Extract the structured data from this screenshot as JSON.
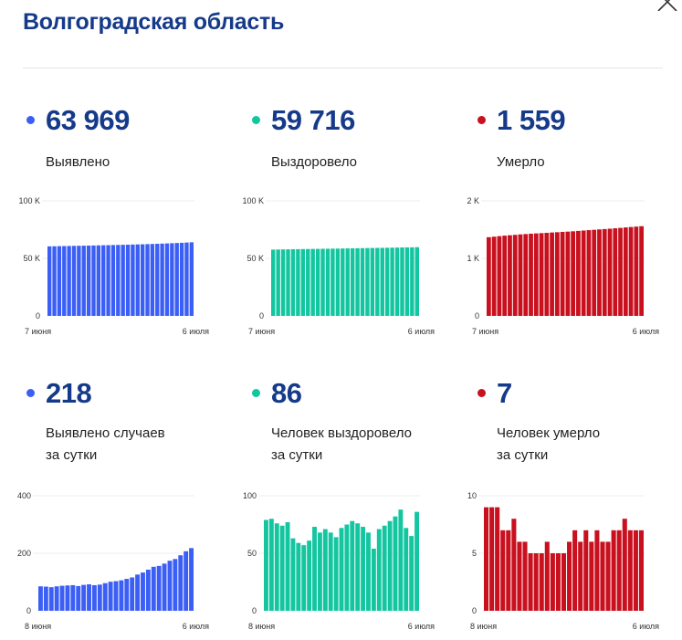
{
  "header": {
    "title": "Волгоградская область",
    "close_icon": "close-icon"
  },
  "colors": {
    "cases": "#3b5ef5",
    "recovered": "#14c6a0",
    "deaths": "#c8101e",
    "title": "#163a8a"
  },
  "stats": [
    {
      "value": "63 969",
      "label": "Выявлено",
      "color": "#3b5ef5"
    },
    {
      "value": "59 716",
      "label": "Выздоровело",
      "color": "#14c6a0"
    },
    {
      "value": "1 559",
      "label": "Умерло",
      "color": "#c8101e"
    },
    {
      "value": "218",
      "label": "Выявлено случаев\nза сутки",
      "color": "#3b5ef5"
    },
    {
      "value": "86",
      "label": "Человек выздоровело\nза сутки",
      "color": "#14c6a0"
    },
    {
      "value": "7",
      "label": "Человек умерло\nза сутки",
      "color": "#c8101e"
    }
  ],
  "chart_data": [
    {
      "type": "bar",
      "color": "#3b5ef5",
      "ylim": [
        0,
        100000
      ],
      "yticks": [
        "0",
        "50 K",
        "100 K"
      ],
      "ytick_values": [
        0,
        50000,
        100000
      ],
      "x_start_label": "7 июня",
      "x_end_label": "6 июля",
      "grid": true,
      "values": [
        60441,
        60526,
        60610,
        60692,
        60777,
        60864,
        60952,
        61041,
        61127,
        61217,
        61309,
        61398,
        61489,
        61585,
        61686,
        61789,
        61895,
        62006,
        62122,
        62248,
        62381,
        62524,
        62677,
        62833,
        62997,
        63171,
        63351,
        63544,
        63751,
        63969
      ]
    },
    {
      "type": "bar",
      "color": "#14c6a0",
      "ylim": [
        0,
        100000
      ],
      "yticks": [
        "0",
        "50 K",
        "100 K"
      ],
      "ytick_values": [
        0,
        50000,
        100000
      ],
      "x_start_label": "7 июня",
      "x_end_label": "6 июля",
      "grid": true,
      "values": [
        57634,
        57713,
        57793,
        57869,
        57943,
        58020,
        58083,
        58142,
        58199,
        58260,
        58333,
        58401,
        58472,
        58540,
        58604,
        58676,
        58751,
        58829,
        58905,
        58978,
        59046,
        59100,
        59171,
        59245,
        59323,
        59405,
        59493,
        59565,
        59630,
        59716
      ]
    },
    {
      "type": "bar",
      "color": "#c8101e",
      "ylim": [
        0,
        2000
      ],
      "yticks": [
        "0",
        "1 K",
        "2 K"
      ],
      "ytick_values": [
        0,
        1000,
        2000
      ],
      "x_start_label": "7 июня",
      "x_end_label": "6 июля",
      "grid": true,
      "values": [
        1368,
        1377,
        1386,
        1395,
        1402,
        1409,
        1417,
        1423,
        1429,
        1434,
        1439,
        1444,
        1450,
        1455,
        1460,
        1465,
        1471,
        1478,
        1484,
        1491,
        1497,
        1504,
        1510,
        1516,
        1523,
        1530,
        1538,
        1545,
        1552,
        1559
      ]
    },
    {
      "type": "bar",
      "color": "#3b5ef5",
      "ylim": [
        0,
        400
      ],
      "yticks": [
        "0",
        "200",
        "400"
      ],
      "ytick_values": [
        0,
        200,
        400
      ],
      "x_start_label": "8 июня",
      "x_end_label": "6 июля",
      "grid": true,
      "values": [
        85,
        84,
        82,
        85,
        87,
        88,
        89,
        86,
        90,
        92,
        89,
        91,
        96,
        101,
        103,
        106,
        111,
        116,
        126,
        133,
        143,
        153,
        156,
        164,
        174,
        180,
        193,
        207,
        218
      ]
    },
    {
      "type": "bar",
      "color": "#14c6a0",
      "ylim": [
        0,
        100
      ],
      "yticks": [
        "0",
        "50",
        "100"
      ],
      "ytick_values": [
        0,
        50,
        100
      ],
      "x_start_label": "8 июня",
      "x_end_label": "6 июля",
      "grid": true,
      "values": [
        79,
        80,
        76,
        74,
        77,
        63,
        59,
        57,
        61,
        73,
        68,
        71,
        68,
        64,
        72,
        75,
        78,
        76,
        73,
        68,
        54,
        71,
        74,
        78,
        82,
        88,
        72,
        65,
        86
      ]
    },
    {
      "type": "bar",
      "color": "#c8101e",
      "ylim": [
        0,
        10
      ],
      "yticks": [
        "0",
        "5",
        "10"
      ],
      "ytick_values": [
        0,
        5,
        10
      ],
      "x_start_label": "8 июня",
      "x_end_label": "6 июля",
      "grid": true,
      "values": [
        9,
        9,
        9,
        7,
        7,
        8,
        6,
        6,
        5,
        5,
        5,
        6,
        5,
        5,
        5,
        6,
        7,
        6,
        7,
        6,
        7,
        6,
        6,
        7,
        7,
        8,
        7,
        7,
        7
      ]
    }
  ]
}
